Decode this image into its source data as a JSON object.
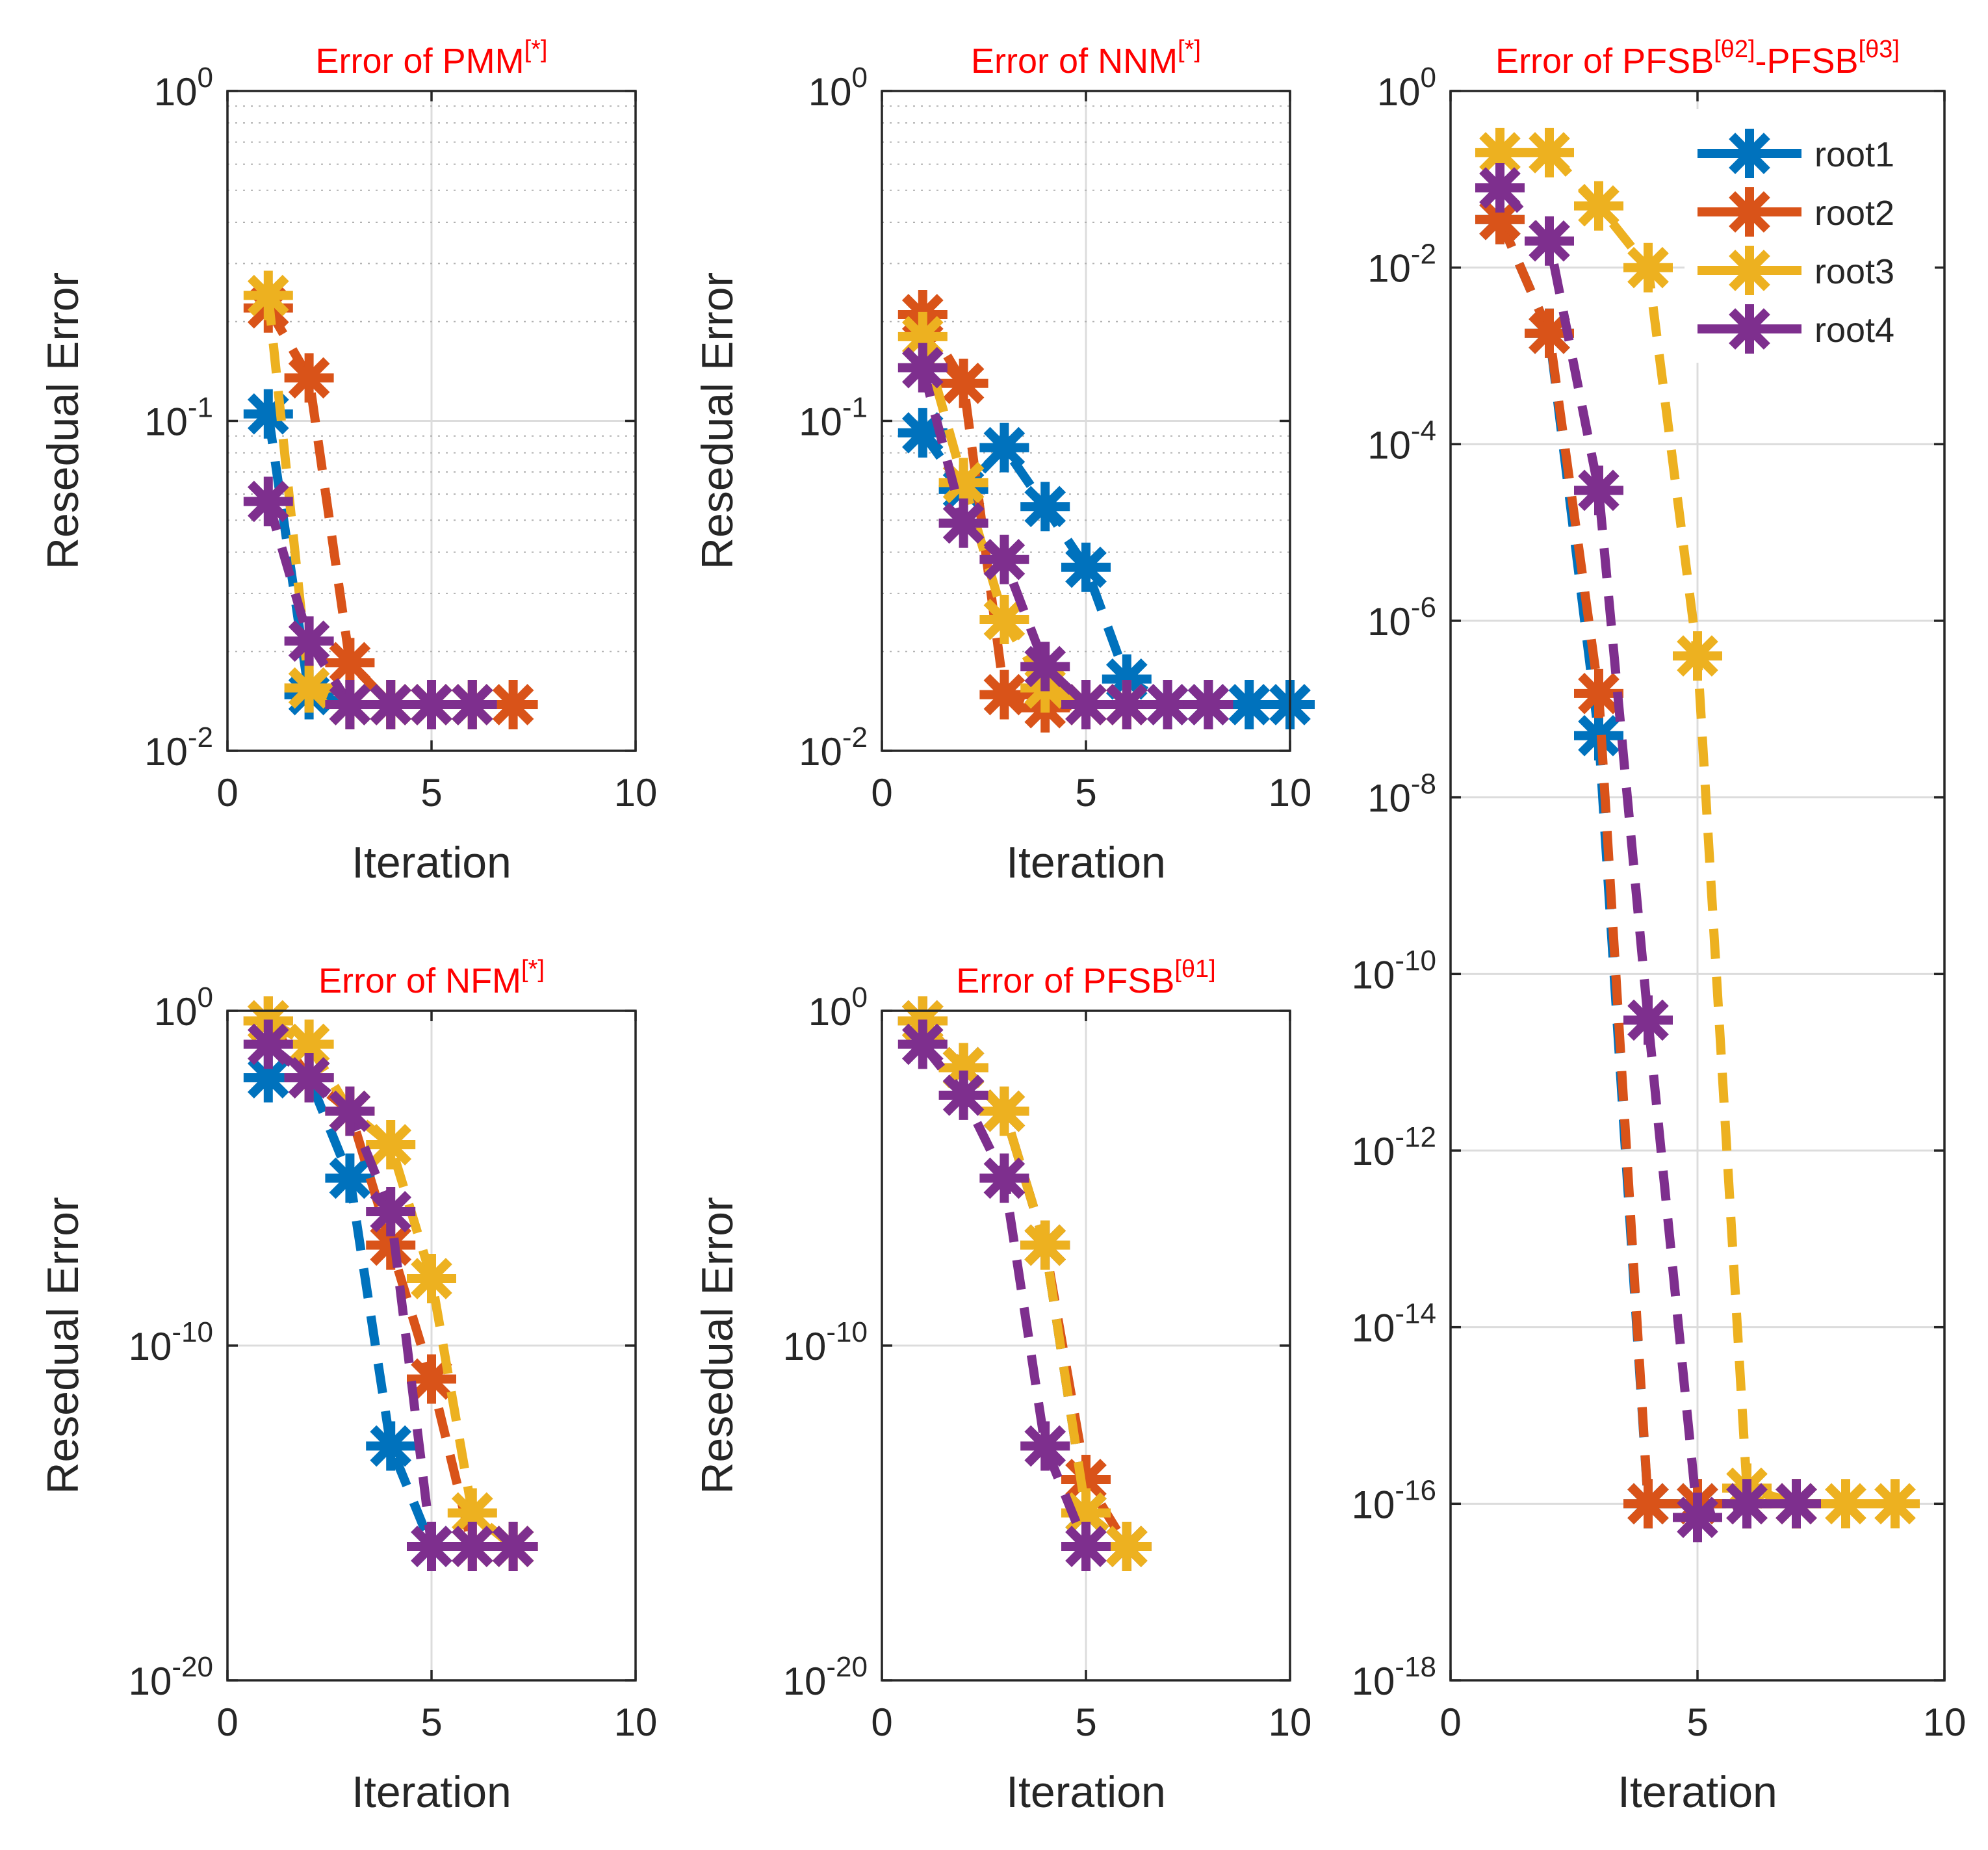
{
  "figure": {
    "name": "residual-error-comparison",
    "background": "#ffffff"
  },
  "colors": {
    "root1": "#0072BD",
    "root2": "#D95319",
    "root3": "#EDB120",
    "root4": "#7E2F8E",
    "title": "#FF0000",
    "axis": "#262626",
    "grid": "#DCDCDC"
  },
  "chart_data": [
    {
      "id": "pmm",
      "type": "line",
      "title": "Error of PMM",
      "title_superscript": "[*]",
      "xlabel": "Iteration",
      "ylabel": "Resedual Error",
      "xlim": [
        0,
        10
      ],
      "xticks": [
        0,
        5,
        10
      ],
      "xtick_labels": [
        "0",
        "5",
        "10"
      ],
      "yscale": "log",
      "ylim": [
        0.01,
        1
      ],
      "yticks": [
        -2,
        -1,
        0
      ],
      "ytick_labels": [
        "10",
        "10",
        "10"
      ],
      "ytick_exponents": [
        "-2",
        "-1",
        "0"
      ],
      "minor_grid": true,
      "series": [
        {
          "name": "root1",
          "x": [
            1,
            2,
            3,
            4,
            5,
            6
          ],
          "y": [
            0.105,
            0.0148,
            0.0138,
            0.0138,
            0.0138,
            0.0138
          ]
        },
        {
          "name": "root2",
          "x": [
            1,
            2,
            3,
            4,
            5,
            6,
            7
          ],
          "y": [
            0.22,
            0.135,
            0.0185,
            0.0138,
            0.0138,
            0.0138,
            0.0138
          ]
        },
        {
          "name": "root3",
          "x": [
            1,
            2,
            3,
            4,
            5,
            6
          ],
          "y": [
            0.24,
            0.0155,
            0.0138,
            0.0138,
            0.0138,
            0.0138
          ]
        },
        {
          "name": "root4",
          "x": [
            1,
            2,
            3,
            4,
            5,
            6
          ],
          "y": [
            0.057,
            0.0215,
            0.0138,
            0.0138,
            0.0138,
            0.0138
          ]
        }
      ]
    },
    {
      "id": "nnm",
      "type": "line",
      "title": "Error of NNM",
      "title_superscript": "[*]",
      "xlabel": "Iteration",
      "ylabel": "Resedual Error",
      "xlim": [
        0,
        10
      ],
      "xticks": [
        0,
        5,
        10
      ],
      "xtick_labels": [
        "0",
        "5",
        "10"
      ],
      "yscale": "log",
      "ylim": [
        0.01,
        1
      ],
      "yticks": [
        -2,
        -1,
        0
      ],
      "ytick_labels": [
        "10",
        "10",
        "10"
      ],
      "ytick_exponents": [
        "-2",
        "-1",
        "0"
      ],
      "minor_grid": true,
      "series": [
        {
          "name": "root1",
          "x": [
            1,
            2,
            3,
            4,
            5,
            6,
            7,
            8,
            9,
            10
          ],
          "y": [
            0.092,
            0.062,
            0.083,
            0.055,
            0.036,
            0.0165,
            0.0138,
            0.0138,
            0.0138,
            0.0138
          ]
        },
        {
          "name": "root2",
          "x": [
            1,
            2,
            3,
            4,
            5,
            6
          ],
          "y": [
            0.21,
            0.13,
            0.0148,
            0.0135,
            0.0138,
            0.0138
          ]
        },
        {
          "name": "root3",
          "x": [
            1,
            2,
            3,
            4,
            5,
            6
          ],
          "y": [
            0.18,
            0.065,
            0.025,
            0.0155,
            0.0138,
            0.0138
          ]
        },
        {
          "name": "root4",
          "x": [
            1,
            2,
            3,
            4,
            5,
            6,
            7,
            8
          ],
          "y": [
            0.145,
            0.049,
            0.038,
            0.018,
            0.0138,
            0.0138,
            0.0138,
            0.0138
          ]
        }
      ]
    },
    {
      "id": "nfm",
      "type": "line",
      "title": "Error of NFM",
      "title_superscript": "[*]",
      "xlabel": "Iteration",
      "ylabel": "Resedual Error",
      "xlim": [
        0,
        10
      ],
      "xticks": [
        0,
        5,
        10
      ],
      "xtick_labels": [
        "0",
        "5",
        "10"
      ],
      "yscale": "log",
      "ylim": [
        1e-20,
        1
      ],
      "yticks": [
        -20,
        -10,
        0
      ],
      "ytick_labels": [
        "10",
        "10",
        "10"
      ],
      "ytick_exponents": [
        "-20",
        "-10",
        "0"
      ],
      "minor_grid": false,
      "series": [
        {
          "name": "root1",
          "x": [
            1,
            2,
            3,
            4,
            5
          ],
          "y": [
            0.01,
            0.01,
            1e-05,
            1e-13,
            1e-16
          ]
        },
        {
          "name": "root2",
          "x": [
            1,
            2,
            3,
            4,
            5,
            6,
            7
          ],
          "y": [
            0.5,
            0.01,
            0.001,
            1e-07,
            1e-11,
            1e-16,
            1e-16
          ]
        },
        {
          "name": "root3",
          "x": [
            1,
            2,
            3,
            4,
            5,
            6,
            7
          ],
          "y": [
            0.5,
            0.1,
            0.001,
            0.0001,
            1e-08,
            1e-15,
            1e-16
          ]
        },
        {
          "name": "root4",
          "x": [
            1,
            2,
            3,
            4,
            5,
            6,
            7
          ],
          "y": [
            0.1,
            0.01,
            0.001,
            1e-06,
            1e-16,
            1e-16,
            1e-16
          ]
        }
      ]
    },
    {
      "id": "pfsb1",
      "type": "line",
      "title": "Error of PFSB",
      "title_superscript": "[θ1]",
      "xlabel": "Iteration",
      "ylabel": "Resedual Error",
      "xlim": [
        0,
        10
      ],
      "xticks": [
        0,
        5,
        10
      ],
      "xtick_labels": [
        "0",
        "5",
        "10"
      ],
      "yscale": "log",
      "ylim": [
        1e-20,
        1
      ],
      "yticks": [
        -20,
        -10,
        0
      ],
      "ytick_labels": [
        "10",
        "10",
        "10"
      ],
      "ytick_exponents": [
        "-20",
        "-10",
        "0"
      ],
      "minor_grid": false,
      "series": [
        {
          "name": "root1",
          "x": [
            1,
            2,
            3,
            4,
            5,
            6
          ],
          "y": [
            0.5,
            0.02,
            0.001,
            1e-07,
            1e-15,
            1e-16
          ]
        },
        {
          "name": "root2",
          "x": [
            1,
            2,
            3,
            4,
            5,
            6
          ],
          "y": [
            0.5,
            0.02,
            0.001,
            1e-07,
            1e-14,
            1e-16
          ]
        },
        {
          "name": "root3",
          "x": [
            1,
            2,
            3,
            4,
            5,
            6
          ],
          "y": [
            0.5,
            0.02,
            0.001,
            1e-07,
            1e-15,
            1e-16
          ]
        },
        {
          "name": "root4",
          "x": [
            1,
            2,
            3,
            4,
            5
          ],
          "y": [
            0.1,
            0.003,
            1e-05,
            1e-13,
            1e-16
          ]
        }
      ]
    },
    {
      "id": "pfsb23",
      "type": "line",
      "title": "Error of PFSB",
      "title_superscript": "[θ2]",
      "title_mid": "-PFSB",
      "title_superscript2": "[θ3]",
      "xlabel": "Iteration",
      "ylabel": "",
      "xlim": [
        0,
        10
      ],
      "xticks": [
        0,
        5,
        10
      ],
      "xtick_labels": [
        "0",
        "5",
        "10"
      ],
      "yscale": "log",
      "ylim": [
        1e-18,
        1
      ],
      "yticks": [
        -18,
        -16,
        -14,
        -12,
        -10,
        -8,
        -6,
        -4,
        -2,
        0
      ],
      "ytick_labels": [
        "10",
        "10",
        "10",
        "10",
        "10",
        "10",
        "10",
        "10",
        "10",
        "10"
      ],
      "ytick_exponents": [
        "-18",
        "-16",
        "-14",
        "-12",
        "-10",
        "-8",
        "-6",
        "-4",
        "-2",
        "0"
      ],
      "minor_grid": false,
      "legend": {
        "entries": [
          "root1",
          "root2",
          "root3",
          "root4"
        ],
        "location": "top-right"
      },
      "series": [
        {
          "name": "root1",
          "x": [
            1,
            2,
            3,
            4,
            5,
            6,
            7
          ],
          "y": [
            0.035,
            0.0018,
            5e-08,
            1e-16,
            1e-16,
            1e-16,
            1e-16
          ]
        },
        {
          "name": "root2",
          "x": [
            1,
            2,
            3,
            4,
            5,
            6,
            7
          ],
          "y": [
            0.035,
            0.0018,
            1.5e-07,
            1e-16,
            1e-16,
            1e-16,
            1e-16
          ]
        },
        {
          "name": "root3",
          "x": [
            1,
            2,
            3,
            4,
            5,
            6,
            7,
            8,
            9
          ],
          "y": [
            0.2,
            0.2,
            0.05,
            0.01,
            4e-07,
            1.5e-16,
            1e-16,
            1e-16,
            1e-16
          ]
        },
        {
          "name": "root4",
          "x": [
            1,
            2,
            3,
            4,
            5,
            6,
            7
          ],
          "y": [
            0.08,
            0.02,
            3e-05,
            3e-11,
            7e-17,
            1e-16,
            1e-16
          ]
        }
      ]
    }
  ]
}
